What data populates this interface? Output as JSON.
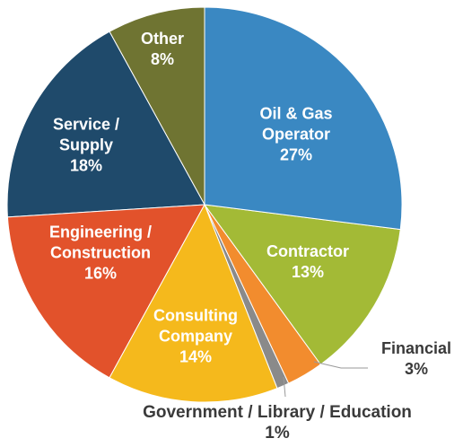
{
  "chart_data": {
    "type": "pie",
    "categories": [
      "Oil & Gas Operator",
      "Contractor",
      "Financial",
      "Government / Library / Education",
      "Consulting Company",
      "Engineering / Construction",
      "Service / Supply",
      "Other"
    ],
    "values": [
      27,
      13,
      3,
      1,
      14,
      16,
      18,
      8
    ],
    "value_labels": [
      "27%",
      "13%",
      "3%",
      "1%",
      "14%",
      "16%",
      "18%",
      "8%"
    ],
    "colors": [
      "#3a88c2",
      "#a3ba36",
      "#f28c2e",
      "#8a8a8a",
      "#f5b91c",
      "#e2522b",
      "#1f4a6b",
      "#6f7432"
    ]
  }
}
